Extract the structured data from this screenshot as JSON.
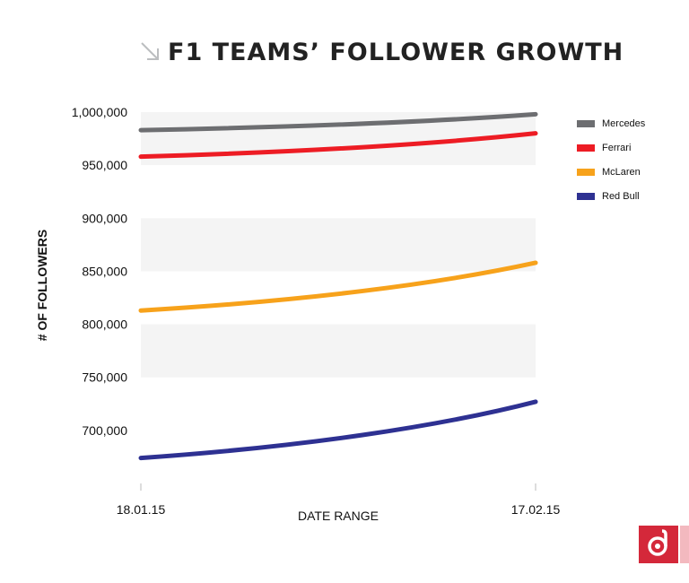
{
  "title": "F1 TEAMS’ FOLLOWER GROWTH",
  "icons": {
    "title": "diagonal-arrow-icon",
    "logo": "brand-logo-icon"
  },
  "colors": {
    "band": "#f4f4f4",
    "text": "#222222",
    "logo": "#d4283a"
  },
  "chart_data": {
    "type": "line",
    "title": "F1 TEAMS’ FOLLOWER GROWTH",
    "xlabel": "DATE RANGE",
    "ylabel": "# OF FOLLOWERS",
    "x": [
      "18.01.15",
      "17.02.15"
    ],
    "ylim": [
      650000,
      1000000
    ],
    "yticks": [
      700000,
      750000,
      800000,
      850000,
      900000,
      950000,
      1000000
    ],
    "ytick_labels": [
      "700,000",
      "750,000",
      "800,000",
      "850,000",
      "900,000",
      "950,000",
      "1,000,000"
    ],
    "grid": "alternating horizontal bands",
    "legend": "right",
    "series": [
      {
        "name": "Mercedes",
        "color": "#6d6e71",
        "start": 983000,
        "end": 998000
      },
      {
        "name": "Ferrari",
        "color": "#ed1c24",
        "start": 958000,
        "end": 980000
      },
      {
        "name": "McLaren",
        "color": "#f7a21b",
        "start": 813000,
        "end": 858000
      },
      {
        "name": "Red Bull",
        "color": "#2e3192",
        "start": 674000,
        "end": 727000
      }
    ]
  }
}
